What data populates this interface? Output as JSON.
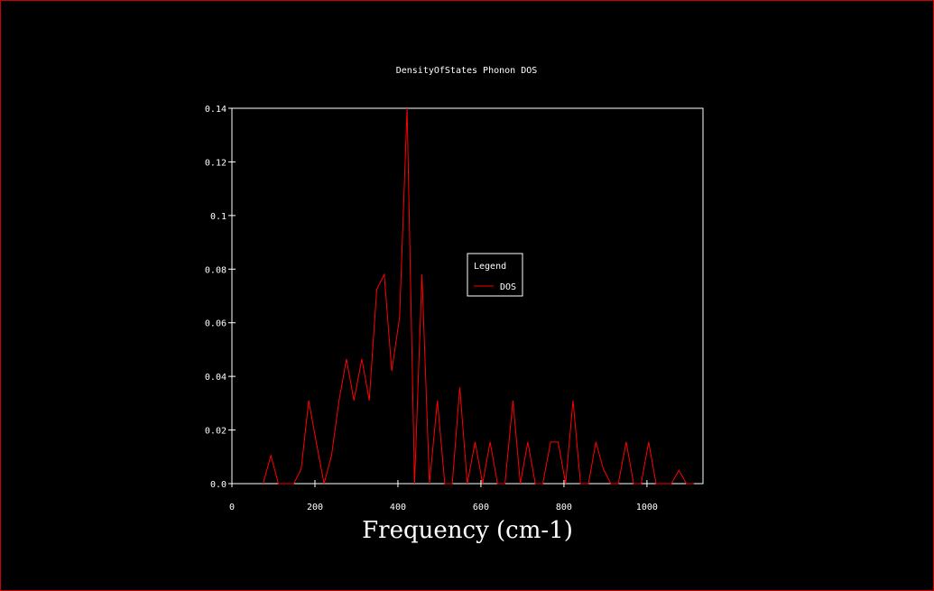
{
  "chart_data": {
    "type": "line",
    "title": "DensityOfStates Phonon DOS",
    "xlabel": "Frequency (cm-1)",
    "ylabel": "",
    "xlim": [
      0,
      1135
    ],
    "ylim": [
      0,
      0.14
    ],
    "xticks": [
      0,
      200,
      400,
      600,
      800,
      1000
    ],
    "xtick_labels": [
      "0",
      "200",
      "400",
      "600",
      "800",
      "1000"
    ],
    "yticks": [
      0,
      0.02,
      0.04,
      0.06,
      0.08,
      0.1,
      0.12,
      0.14
    ],
    "ytick_labels": [
      "0.0",
      "0.02",
      "0.04",
      "0.06",
      "0.08",
      "0.1",
      "0.12",
      "0.14"
    ],
    "grid": false,
    "legend": {
      "title": "Legend",
      "placement": "center-right"
    },
    "colors": {
      "background": "#000000",
      "frame": "#cc0000",
      "axes": "#ffffff",
      "series": "#ff0000"
    },
    "series": [
      {
        "name": "DOS",
        "color": "#ff0000",
        "x": [
          75,
          94,
          112,
          130,
          149,
          167,
          185,
          203,
          222,
          240,
          258,
          276,
          294,
          313,
          331,
          349,
          367,
          385,
          404,
          422,
          440,
          458,
          476,
          495,
          513,
          531,
          549,
          567,
          586,
          604,
          622,
          640,
          658,
          677,
          695,
          713,
          731,
          749,
          768,
          786,
          804,
          822,
          840,
          859,
          877,
          895,
          913,
          931,
          950,
          968,
          986,
          1004,
          1022,
          1041,
          1059,
          1077,
          1095,
          1113
        ],
        "y": [
          0,
          0.0105,
          0,
          0,
          0,
          0.0055,
          0.031,
          0.0155,
          0,
          0.0105,
          0.031,
          0.0465,
          0.031,
          0.0465,
          0.031,
          0.0725,
          0.078,
          0.042,
          0.062,
          0.14,
          0,
          0.078,
          0,
          0.031,
          0,
          0,
          0.036,
          0,
          0.0155,
          0,
          0.0155,
          0,
          0,
          0.031,
          0,
          0.0155,
          0,
          0,
          0.0155,
          0.0155,
          0,
          0.031,
          0,
          0,
          0.0155,
          0.0055,
          0,
          0,
          0.0155,
          0,
          0,
          0.0155,
          0,
          0,
          0,
          0.005,
          0,
          0
        ]
      }
    ]
  }
}
